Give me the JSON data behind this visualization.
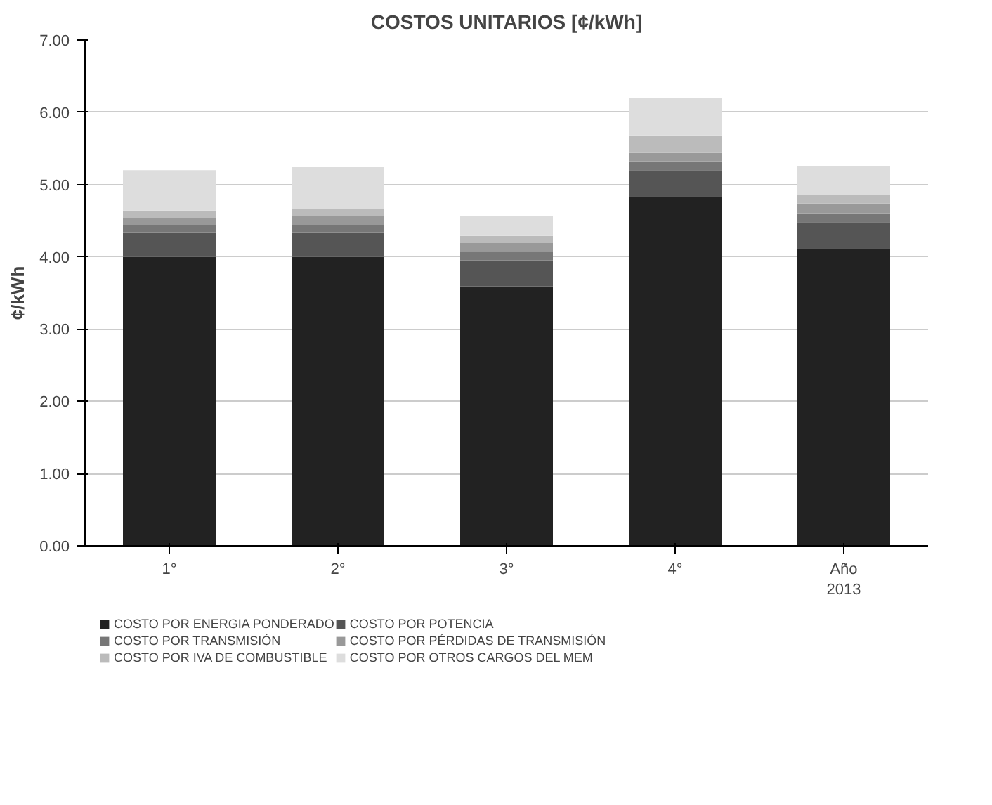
{
  "chart_data": {
    "type": "bar",
    "title": "COSTOS UNITARIOS [¢/kWh]",
    "ylabel": "¢/kWh",
    "categories": [
      "1°",
      "2°",
      "3°",
      "4°",
      "Año\n2013"
    ],
    "stacked": true,
    "series": [
      {
        "name": "COSTO POR ENERGIA PONDERADO",
        "color": "#222222",
        "values": [
          4.0,
          4.0,
          3.59,
          4.84,
          4.12
        ]
      },
      {
        "name": "COSTO POR POTENCIA",
        "color": "#555555",
        "values": [
          0.34,
          0.34,
          0.36,
          0.36,
          0.36
        ]
      },
      {
        "name": "COSTO POR TRANSMISIÓN",
        "color": "#777777",
        "values": [
          0.1,
          0.1,
          0.12,
          0.12,
          0.12
        ]
      },
      {
        "name": "COSTO POR PÉRDIDAS DE TRANSMISIÓN",
        "color": "#999999",
        "values": [
          0.1,
          0.12,
          0.12,
          0.12,
          0.14
        ]
      },
      {
        "name": "COSTO POR IVA DE COMBUSTIBLE",
        "color": "#bbbbbb",
        "values": [
          0.1,
          0.1,
          0.1,
          0.24,
          0.12
        ]
      },
      {
        "name": "COSTO POR OTROS CARGOS DEL MEM",
        "color": "#dddddd",
        "values": [
          0.56,
          0.58,
          0.28,
          0.52,
          0.4
        ]
      }
    ],
    "ylim": [
      0,
      7
    ],
    "yticks": [
      {
        "value": 0,
        "label": "0.00"
      },
      {
        "value": 1,
        "label": "1.00"
      },
      {
        "value": 2,
        "label": "2.00"
      },
      {
        "value": 3,
        "label": "3.00"
      },
      {
        "value": 4,
        "label": "4.00"
      },
      {
        "value": 5,
        "label": "5.00"
      },
      {
        "value": 6,
        "label": "6.00"
      },
      {
        "value": 7,
        "label": "7.00"
      }
    ],
    "grid": "y",
    "legend": "bottom"
  }
}
